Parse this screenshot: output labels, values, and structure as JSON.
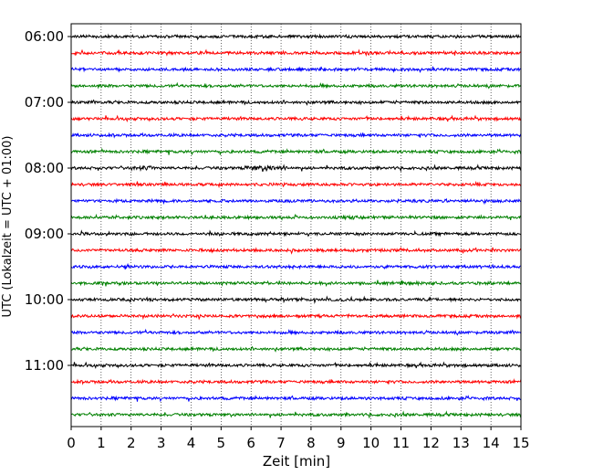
{
  "chart_data": {
    "type": "line",
    "title": "",
    "xlabel": "Zeit  [min]",
    "ylabel": "UTC (Lokalzeit = UTC + 01:00)",
    "xlim": [
      0,
      15
    ],
    "x_ticks": [
      "0",
      "1",
      "2",
      "3",
      "4",
      "5",
      "6",
      "7",
      "8",
      "9",
      "10",
      "11",
      "12",
      "13",
      "14",
      "15"
    ],
    "y_ticks": [
      "06:00",
      "07:00",
      "08:00",
      "09:00",
      "10:00",
      "11:00"
    ],
    "grid": "vertical dotted",
    "trace_interval_minutes": 15,
    "trace_colors": [
      "#000000",
      "#ff0000",
      "#0000ff",
      "#008000"
    ],
    "series": [
      {
        "time": "06:00",
        "color": "#000000"
      },
      {
        "time": "06:15",
        "color": "#ff0000"
      },
      {
        "time": "06:30",
        "color": "#0000ff"
      },
      {
        "time": "06:45",
        "color": "#008000"
      },
      {
        "time": "07:00",
        "color": "#000000"
      },
      {
        "time": "07:15",
        "color": "#ff0000"
      },
      {
        "time": "07:30",
        "color": "#0000ff"
      },
      {
        "time": "07:45",
        "color": "#008000"
      },
      {
        "time": "08:00",
        "color": "#000000"
      },
      {
        "time": "08:15",
        "color": "#ff0000"
      },
      {
        "time": "08:30",
        "color": "#0000ff"
      },
      {
        "time": "08:45",
        "color": "#008000"
      },
      {
        "time": "09:00",
        "color": "#000000"
      },
      {
        "time": "09:15",
        "color": "#ff0000"
      },
      {
        "time": "09:30",
        "color": "#0000ff"
      },
      {
        "time": "09:45",
        "color": "#008000"
      },
      {
        "time": "10:00",
        "color": "#000000"
      },
      {
        "time": "10:15",
        "color": "#ff0000"
      },
      {
        "time": "10:30",
        "color": "#0000ff"
      },
      {
        "time": "10:45",
        "color": "#008000"
      },
      {
        "time": "11:00",
        "color": "#000000"
      },
      {
        "time": "11:15",
        "color": "#ff0000"
      },
      {
        "time": "11:30",
        "color": "#0000ff"
      },
      {
        "time": "11:45",
        "color": "#008000"
      }
    ]
  }
}
